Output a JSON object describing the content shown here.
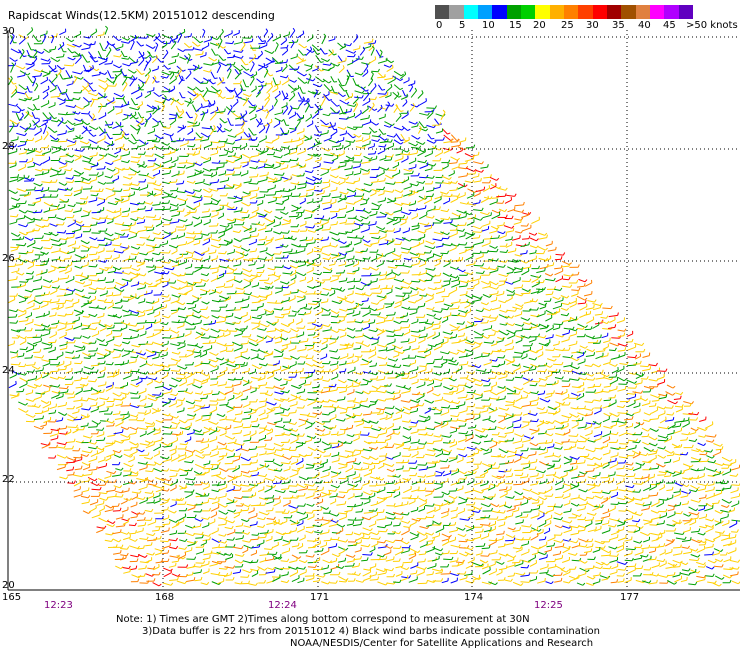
{
  "title": "Rapidscat Winds(12.5KM) 20151012 descending",
  "legend": {
    "colors": [
      "#505050",
      "#a0a0a0",
      "#00ffff",
      "#00a0ff",
      "#0000ff",
      "#00a000",
      "#00d000",
      "#ffff00",
      "#ffb000",
      "#ff8000",
      "#ff4000",
      "#ff0000",
      "#a00000",
      "#a05000",
      "#e08040",
      "#ff00ff",
      "#b000ff",
      "#6000c0"
    ],
    "labels": [
      "0",
      "5",
      "10",
      "15",
      "20",
      "25",
      "30",
      "35",
      "40",
      "45",
      ">50 knots"
    ]
  },
  "latitude_labels": [
    "30",
    "28",
    "26",
    "24",
    "22",
    "20"
  ],
  "longitude_labels": [
    "165",
    "168",
    "171",
    "174",
    "177"
  ],
  "time_labels": [
    "12:23",
    "12:24",
    "12:25"
  ],
  "notes": [
    "Note: 1) Times are GMT 2)Times along bottom correspond to measurement at 30N",
    "3)Data buffer is 22 hrs from 20151012 4) Black wind barbs indicate possible contamination",
    "NOAA/NESDIS/Center for Satellite Applications and Research"
  ],
  "wind_colors": {
    "blue": "#0000ff",
    "green": "#00a000",
    "light_green": "#00d000",
    "yellow": "#ffd000",
    "orange": "#ff8000",
    "red": "#ff0000"
  }
}
